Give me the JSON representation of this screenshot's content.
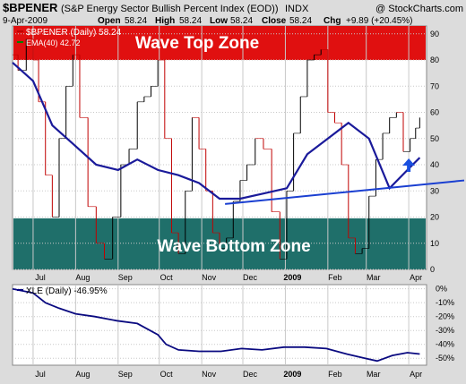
{
  "header": {
    "symbol": "$BPENER",
    "description": "(S&P Energy Sector Bullish Percent Index (EOD))",
    "exchange": "INDX",
    "watermark": "@ StockCharts.com",
    "date": "9-Apr-2009",
    "ohlc": {
      "open_label": "Open",
      "open": "58.24",
      "high_label": "High",
      "high": "58.24",
      "low_label": "Low",
      "low": "58.24",
      "close_label": "Close",
      "close": "58.24",
      "chg_label": "Chg",
      "chg": "+9.89 (+20.45%)"
    }
  },
  "main_panel": {
    "legend": [
      {
        "label": "$BPENER (Daily) 58.24",
        "color": "#c00000"
      },
      {
        "label": "EMA(40) 42.72",
        "color": "#008000"
      }
    ],
    "zones": {
      "top_label": "Wave Top Zone",
      "top_color": "#e01010",
      "bottom_label": "Wave Bottom Zone",
      "bottom_color": "#1f6f6a"
    }
  },
  "lower_panel": {
    "legend": "XLE (Daily) -46.95%",
    "legend_color": "#000080"
  },
  "x_axis": {
    "months": [
      "Jul",
      "Aug",
      "Sep",
      "Oct",
      "Nov",
      "Dec",
      "2009",
      "Feb",
      "Mar",
      "Apr"
    ]
  },
  "colors": {
    "panel_bg": "#ffffff",
    "outer_bg": "#dcdcdc",
    "grid": "#c8c8c8",
    "ema_line": "#1a1a9a",
    "trendline": "#1a3fd1",
    "xle_line": "#0a0a80",
    "arrow": "#1a50e0",
    "up_bar": "#000000",
    "down_bar": "#c00000"
  },
  "chart_data": [
    {
      "type": "line",
      "title": "$BPENER (S&P Energy Sector Bullish Percent Index (EOD))",
      "x_ticks": [
        "Jul",
        "Aug",
        "Sep",
        "Oct",
        "Nov",
        "Dec",
        "2009",
        "Feb",
        "Mar",
        "Apr"
      ],
      "y_ticks": [
        0,
        10,
        20,
        30,
        40,
        50,
        60,
        70,
        80,
        90
      ],
      "ylim": [
        0,
        93
      ],
      "zones": [
        {
          "label": "Wave Top Zone",
          "from": 80,
          "to": 93
        },
        {
          "label": "Wave Bottom Zone",
          "from": 0,
          "to": 19.5
        }
      ],
      "series": [
        {
          "name": "$BPENER (Daily) 58.24",
          "x": [
            "2008-06-16",
            "2008-06-20",
            "2008-06-26",
            "2008-07-01",
            "2008-07-05",
            "2008-07-10",
            "2008-07-15",
            "2008-07-20",
            "2008-07-25",
            "2008-07-30",
            "2008-08-04",
            "2008-08-10",
            "2008-08-16",
            "2008-08-22",
            "2008-08-28",
            "2008-09-03",
            "2008-09-09",
            "2008-09-15",
            "2008-09-20",
            "2008-09-25",
            "2008-09-30",
            "2008-10-05",
            "2008-10-10",
            "2008-10-15",
            "2008-10-20",
            "2008-10-25",
            "2008-10-30",
            "2008-11-04",
            "2008-11-09",
            "2008-11-14",
            "2008-11-19",
            "2008-11-24",
            "2008-11-29",
            "2008-12-04",
            "2008-12-10",
            "2008-12-16",
            "2008-12-22",
            "2008-12-28",
            "2009-01-02",
            "2009-01-07",
            "2009-01-12",
            "2009-01-17",
            "2009-01-22",
            "2009-01-27",
            "2009-02-01",
            "2009-02-06",
            "2009-02-11",
            "2009-02-16",
            "2009-02-21",
            "2009-02-26",
            "2009-03-03",
            "2009-03-08",
            "2009-03-13",
            "2009-03-18",
            "2009-03-23",
            "2009-03-28",
            "2009-04-02",
            "2009-04-06",
            "2009-04-09"
          ],
          "values": [
            82,
            76,
            88,
            80,
            64,
            36,
            20,
            50,
            70,
            82,
            58,
            24,
            10,
            4,
            20,
            40,
            46,
            64,
            66,
            70,
            80,
            50,
            14,
            6,
            30,
            58,
            46,
            30,
            14,
            8,
            12,
            26,
            34,
            40,
            50,
            46,
            22,
            4,
            30,
            52,
            66,
            80,
            82,
            84,
            60,
            56,
            40,
            12,
            6,
            8,
            28,
            42,
            52,
            58,
            60,
            45,
            50,
            54,
            58
          ]
        },
        {
          "name": "EMA(40) 42.72",
          "x": [
            "2008-06-16",
            "2008-07-01",
            "2008-07-15",
            "2008-07-30",
            "2008-08-16",
            "2008-09-01",
            "2008-09-15",
            "2008-09-30",
            "2008-10-15",
            "2008-10-30",
            "2008-11-14",
            "2008-11-29",
            "2008-12-16",
            "2009-01-02",
            "2009-01-17",
            "2009-02-01",
            "2009-02-16",
            "2009-03-03",
            "2009-03-18",
            "2009-04-02",
            "2009-04-09"
          ],
          "values": [
            79,
            72,
            55,
            48,
            40,
            38,
            42,
            38,
            36,
            33,
            27,
            27,
            29,
            31,
            44,
            50,
            56,
            50,
            31,
            39,
            42.72
          ]
        }
      ]
    },
    {
      "type": "line",
      "title": "XLE (Daily) -46.95%",
      "x_ticks": [
        "Jul",
        "Aug",
        "Sep",
        "Oct",
        "Nov",
        "Dec",
        "2009",
        "Feb",
        "Mar",
        "Apr"
      ],
      "y_ticks": [
        "0%",
        "-10%",
        "-20%",
        "-30%",
        "-40%",
        "-50%"
      ],
      "ylim": [
        -55,
        3
      ],
      "series": [
        {
          "name": "XLE (Daily) -46.95%",
          "x": [
            "2008-06-16",
            "2008-07-01",
            "2008-07-10",
            "2008-07-20",
            "2008-08-01",
            "2008-08-15",
            "2008-08-31",
            "2008-09-15",
            "2008-09-30",
            "2008-10-06",
            "2008-10-15",
            "2008-10-30",
            "2008-11-15",
            "2008-11-30",
            "2008-12-15",
            "2008-12-31",
            "2009-01-15",
            "2009-01-31",
            "2009-02-15",
            "2009-02-28",
            "2009-03-09",
            "2009-03-20",
            "2009-03-31",
            "2009-04-09"
          ],
          "values": [
            0,
            -3,
            -10,
            -14,
            -18,
            -20,
            -23,
            -25,
            -33,
            -40,
            -44,
            -45,
            -45,
            -43,
            -44,
            -42,
            -42,
            -43,
            -47,
            -50,
            -52,
            -48,
            -46,
            -46.95
          ]
        }
      ]
    }
  ]
}
